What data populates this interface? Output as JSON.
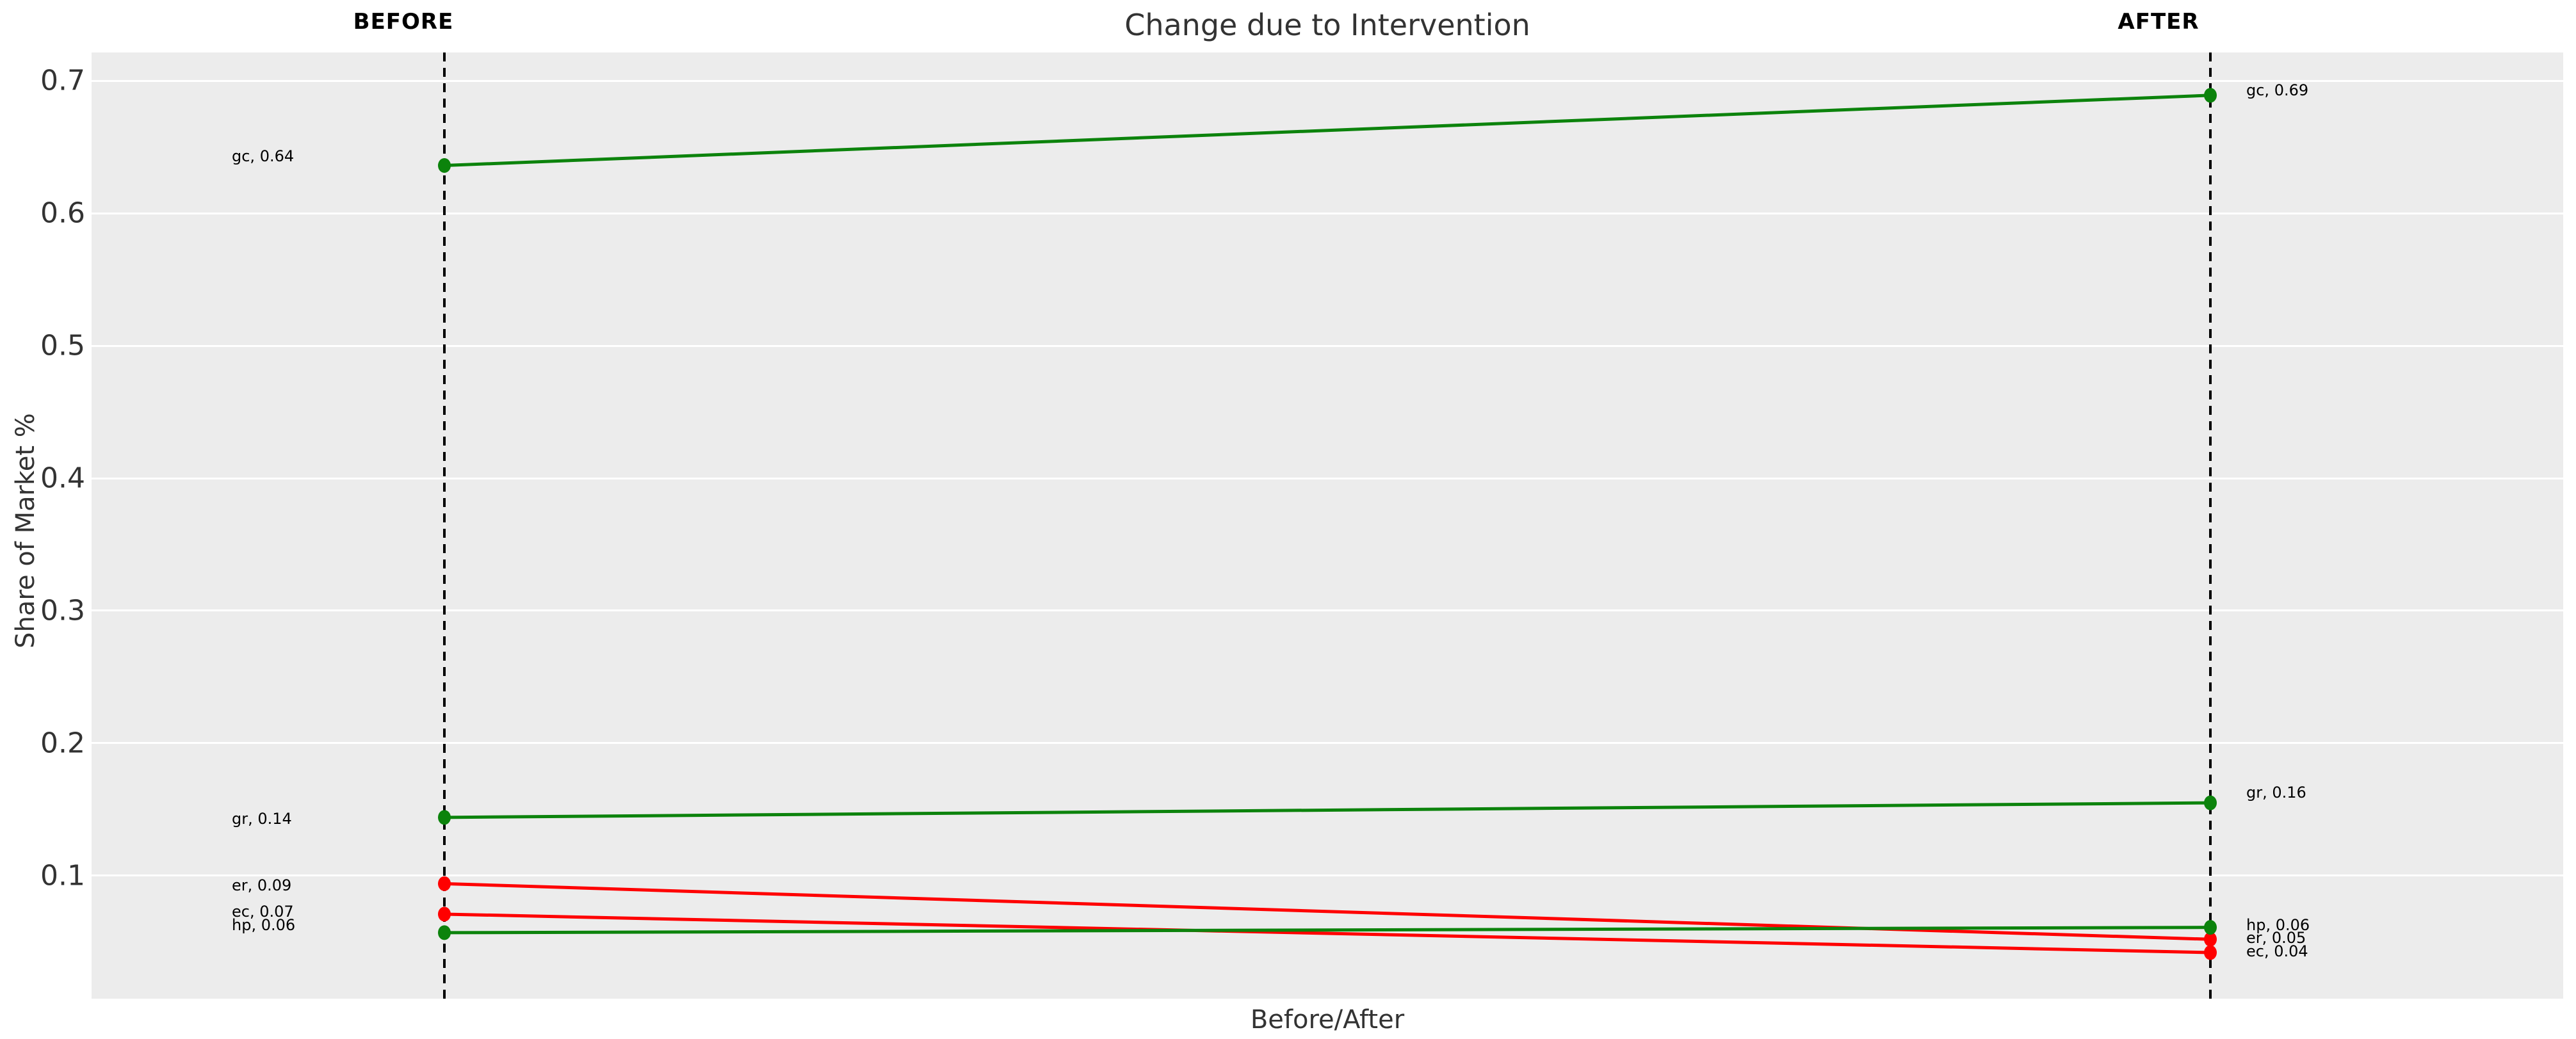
{
  "title": "Change due to Intervention",
  "columns": {
    "before": "BEFORE",
    "after": "AFTER"
  },
  "axes": {
    "y_label": "Share of Market %",
    "x_label": "Before/After",
    "y_ticks": [
      0.7,
      0.6,
      0.5,
      0.4,
      0.3,
      0.2,
      0.1
    ]
  },
  "colors": {
    "up": "#0c830c",
    "down": "#ff0000",
    "plot_bg": "#ececec",
    "grid": "#ffffff",
    "dashed_line": "#000000",
    "text": "#333333"
  },
  "chart_data": {
    "type": "line",
    "subtype": "slope-chart",
    "title": "Change due to Intervention",
    "xlabel": "Before/After",
    "ylabel": "Share of Market %",
    "x_categories": [
      "BEFORE",
      "AFTER"
    ],
    "ylim": [
      0.0072,
      0.7213
    ],
    "grid": "horizontal-white-on-gray",
    "legend": "none",
    "series": [
      {
        "name": "gc",
        "trend": "up",
        "before": 0.636,
        "after": 0.689,
        "label_before": "gc, 0.64",
        "label_after": "gc, 0.69",
        "label_before_value": 0.64,
        "label_after_value": 0.69
      },
      {
        "name": "gr",
        "trend": "up",
        "before": 0.144,
        "after": 0.155,
        "label_before": "gr, 0.14",
        "label_after": "gr, 0.16",
        "label_before_value": 0.14,
        "label_after_value": 0.16
      },
      {
        "name": "er",
        "trend": "down",
        "before": 0.094,
        "after": 0.052,
        "label_before": "er, 0.09",
        "label_after": "er, 0.05",
        "label_before_value": 0.09,
        "label_after_value": 0.05
      },
      {
        "name": "ec",
        "trend": "down",
        "before": 0.071,
        "after": 0.042,
        "label_before": "ec, 0.07",
        "label_after": "ec, 0.04",
        "label_before_value": 0.07,
        "label_after_value": 0.04
      },
      {
        "name": "hp",
        "trend": "up",
        "before": 0.057,
        "after": 0.061,
        "label_before": "hp, 0.06",
        "label_after": "hp, 0.06",
        "label_before_value": 0.06,
        "label_after_value": 0.06
      }
    ]
  }
}
